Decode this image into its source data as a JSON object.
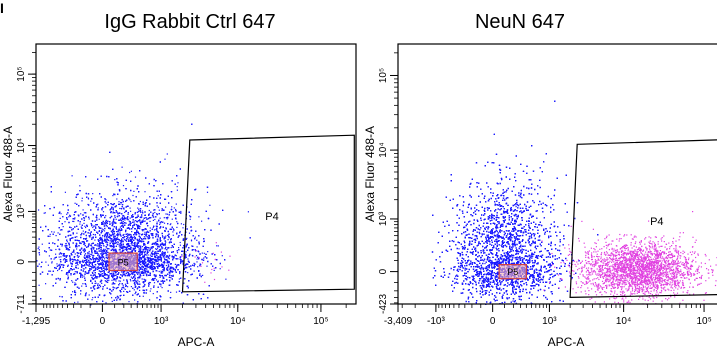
{
  "panel_letter": "I",
  "colors": {
    "population": "#1a1aff",
    "gated": "#e040e0",
    "gate_line": "#000000",
    "p5_box": "#d04040"
  },
  "chart_data": [
    {
      "type": "scatter",
      "title": "IgG Rabbit Ctrl 647",
      "xlabel": "APC-A",
      "ylabel": "Alexa Fluor 488-A",
      "x_ticks": [
        {
          "value": -1295,
          "label": "-1,295"
        },
        {
          "value": 0,
          "label": "0"
        },
        {
          "value": 1000,
          "label": "10³"
        },
        {
          "value": 10000,
          "label": "10⁴"
        },
        {
          "value": 100000,
          "label": "10⁵"
        }
      ],
      "y_ticks": [
        {
          "value": -711,
          "label": "-711"
        },
        {
          "value": 0,
          "label": "0"
        },
        {
          "value": 1000,
          "label": "10³"
        },
        {
          "value": 10000,
          "label": "10⁴"
        },
        {
          "value": 100000,
          "label": "10⁵"
        }
      ],
      "gates": [
        {
          "name": "P4",
          "shape": "polygon",
          "vertices": [
            [
              2500,
              12000
            ],
            [
              250000,
              14000
            ],
            [
              250000,
              -350
            ],
            [
              2000,
              -400
            ]
          ]
        },
        {
          "name": "P5",
          "shape": "rectangle",
          "vertices": [
            [
              50,
              -80
            ],
            [
              400,
              80
            ]
          ]
        }
      ],
      "populations": [
        {
          "name": "ungated",
          "color_role": "population",
          "center": [
            200,
            150
          ],
          "spread": "x 80–1500, y −200–1500",
          "count_approx": 9000
        },
        {
          "name": "P4",
          "color_role": "gated",
          "center": [
            4000,
            0
          ],
          "spread": "sparse",
          "count_approx": 20
        }
      ]
    },
    {
      "type": "scatter",
      "title": "NeuN 647",
      "xlabel": "APC-A",
      "ylabel": "Alexa Fluor 488-A",
      "x_ticks": [
        {
          "value": -3409,
          "label": "-3,409"
        },
        {
          "value": -1000,
          "label": "-10³"
        },
        {
          "value": 0,
          "label": "0"
        },
        {
          "value": 1000,
          "label": "10³"
        },
        {
          "value": 10000,
          "label": "10⁴"
        },
        {
          "value": 100000,
          "label": "10⁵"
        }
      ],
      "y_ticks": [
        {
          "value": -423,
          "label": "-423"
        },
        {
          "value": 0,
          "label": "0"
        },
        {
          "value": 1000,
          "label": "10³"
        },
        {
          "value": 10000,
          "label": "10⁴"
        },
        {
          "value": 100000,
          "label": "10⁵"
        }
      ],
      "gates": [
        {
          "name": "P4",
          "shape": "polygon",
          "vertices": [
            [
              2500,
              12000
            ],
            [
              250000,
              14000
            ],
            [
              250000,
              -250
            ],
            [
              2000,
              -300
            ]
          ]
        },
        {
          "name": "P5",
          "shape": "rectangle",
          "vertices": [
            [
              50,
              -60
            ],
            [
              400,
              60
            ]
          ]
        }
      ],
      "populations": [
        {
          "name": "ungated",
          "color_role": "population",
          "center": [
            100,
            300
          ],
          "spread": "x 0–1500, y −150–2500",
          "count_approx": 8000
        },
        {
          "name": "P4",
          "color_role": "gated",
          "center": [
            15000,
            20
          ],
          "spread": "x 3000–200000, y −150–400",
          "count_approx": 2500
        }
      ]
    }
  ]
}
